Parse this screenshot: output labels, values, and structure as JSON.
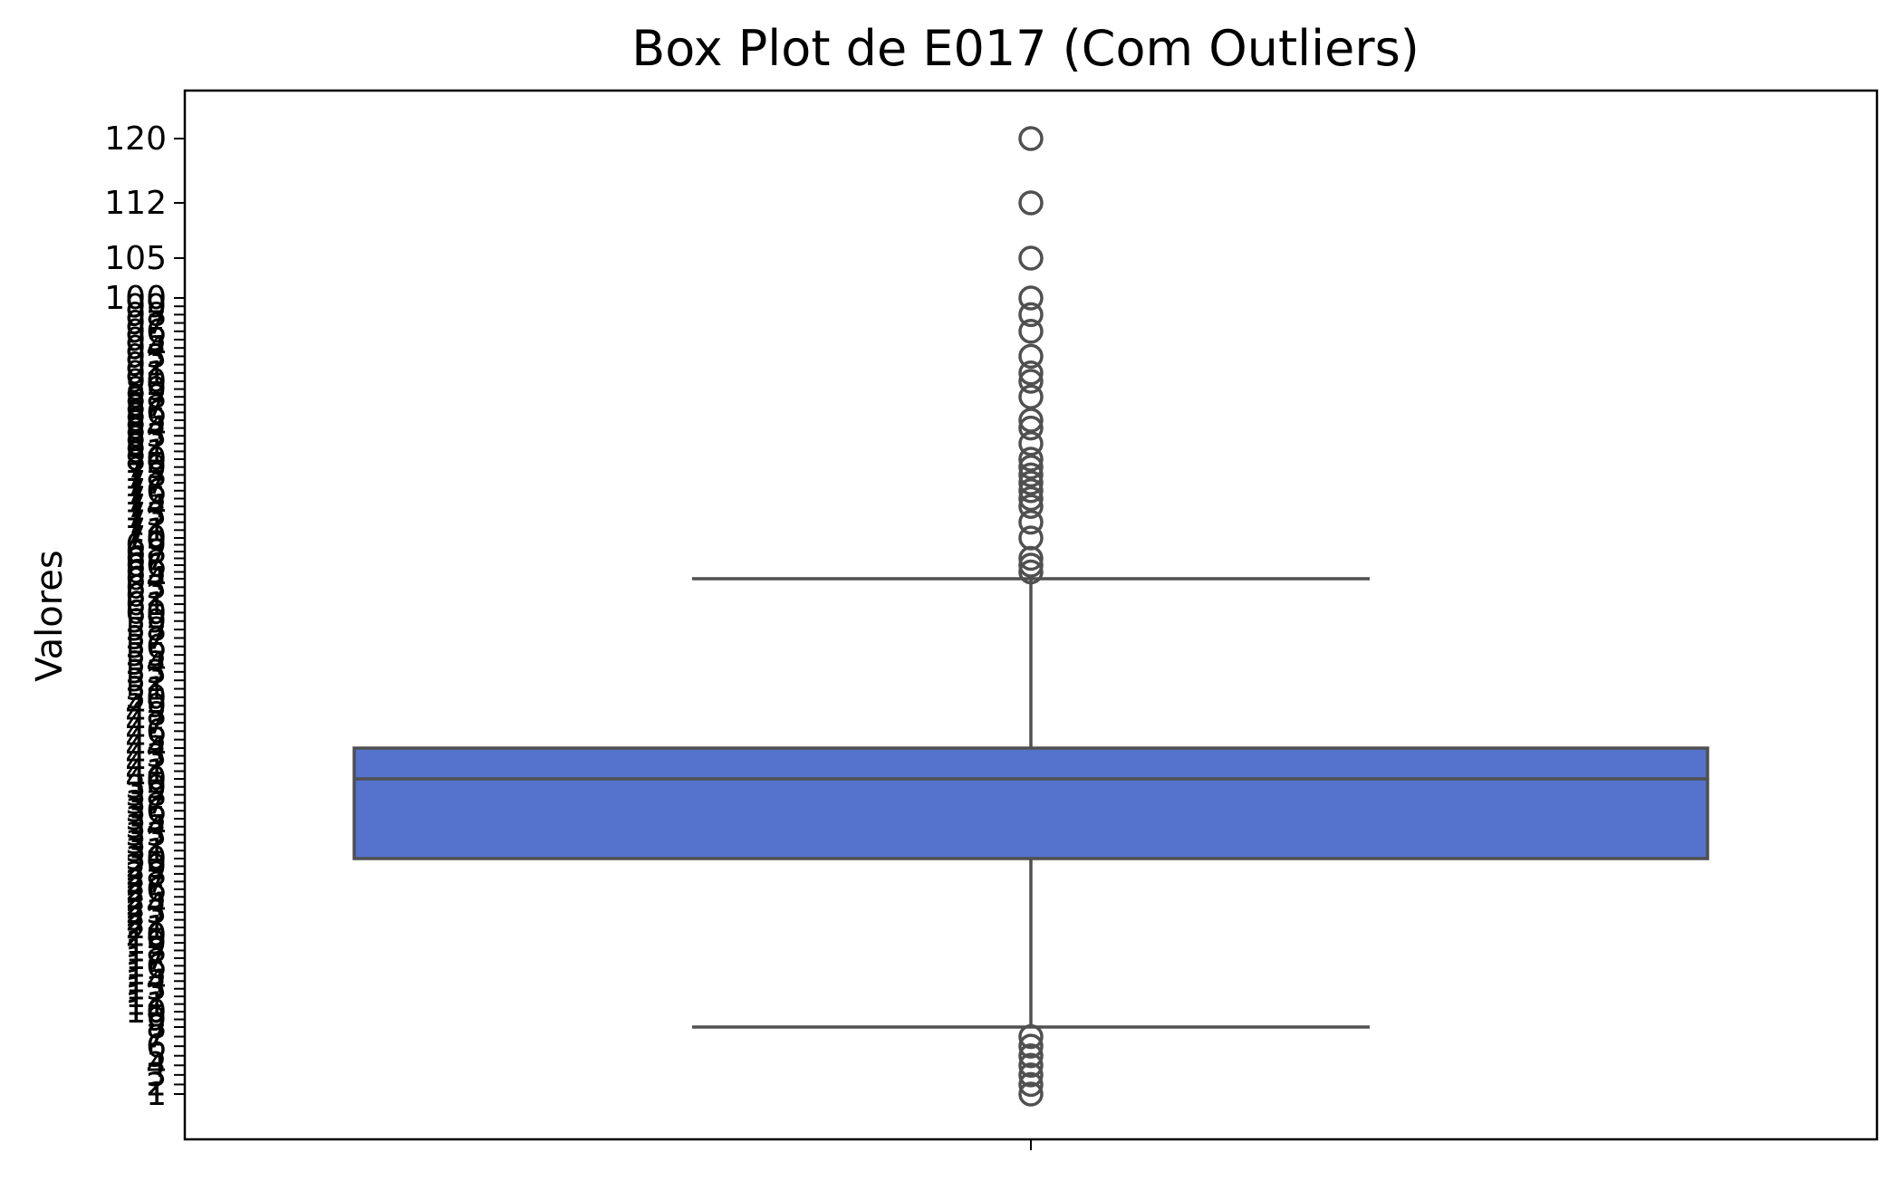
{
  "chart_data": {
    "type": "box",
    "title": "Box Plot de E017 (Com Outliers)",
    "xlabel": "",
    "ylabel": "Valores",
    "xtick_labels": [
      ""
    ],
    "ylim": [
      0,
      126
    ],
    "y_ticks": [
      1,
      2,
      3,
      4,
      5,
      6,
      7,
      8,
      9,
      10,
      11,
      12,
      13,
      14,
      15,
      16,
      17,
      18,
      19,
      20,
      21,
      22,
      23,
      24,
      25,
      26,
      27,
      28,
      29,
      30,
      31,
      32,
      33,
      34,
      35,
      36,
      37,
      38,
      39,
      40,
      41,
      42,
      43,
      44,
      45,
      46,
      47,
      48,
      49,
      50,
      51,
      52,
      53,
      54,
      55,
      56,
      57,
      58,
      59,
      60,
      61,
      62,
      63,
      64,
      65,
      66,
      67,
      68,
      69,
      70,
      71,
      72,
      73,
      74,
      75,
      76,
      77,
      78,
      79,
      80,
      81,
      82,
      83,
      84,
      85,
      86,
      87,
      88,
      89,
      90,
      91,
      92,
      93,
      94,
      95,
      96,
      97,
      98,
      99,
      100,
      105,
      112,
      120
    ],
    "y_tick_labels": [
      "1",
      "2",
      "3",
      "4",
      "5",
      "6",
      "7",
      "8",
      "9",
      "10",
      "11",
      "12",
      "13",
      "14",
      "15",
      "16",
      "17",
      "18",
      "19",
      "20",
      "21",
      "22",
      "23",
      "24",
      "25",
      "26",
      "27",
      "28",
      "29",
      "30",
      "31",
      "32",
      "33",
      "34",
      "35",
      "36",
      "37",
      "38",
      "39",
      "40",
      "41",
      "42",
      "43",
      "44",
      "45",
      "46",
      "47",
      "48",
      "49",
      "50",
      "51",
      "52",
      "53",
      "54",
      "55",
      "56",
      "57",
      "58",
      "59",
      "60",
      "61",
      "62",
      "63",
      "64",
      "65",
      "66",
      "67",
      "68",
      "69",
      "70",
      "71",
      "72",
      "73",
      "74",
      "75",
      "76",
      "77",
      "78",
      "79",
      "80",
      "81",
      "82",
      "83",
      "84",
      "85",
      "86",
      "87",
      "88",
      "89",
      "90",
      "91",
      "92",
      "93",
      "94",
      "95",
      "96",
      "97",
      "98",
      "99",
      "100",
      "105",
      "112",
      "120"
    ],
    "box": {
      "whisker_low": 8,
      "q1": 30,
      "median": 40,
      "q3": 44,
      "whisker_high": 64,
      "color": "#5573cc",
      "edge_color": "#505050"
    },
    "outliers": [
      1,
      2,
      3,
      4,
      5,
      6,
      7,
      65,
      66,
      67,
      70,
      72,
      74,
      75,
      76,
      77,
      78,
      79,
      80,
      82,
      84,
      85,
      88,
      90,
      91,
      93,
      96,
      98,
      100,
      105,
      112,
      120
    ],
    "grid": false
  }
}
